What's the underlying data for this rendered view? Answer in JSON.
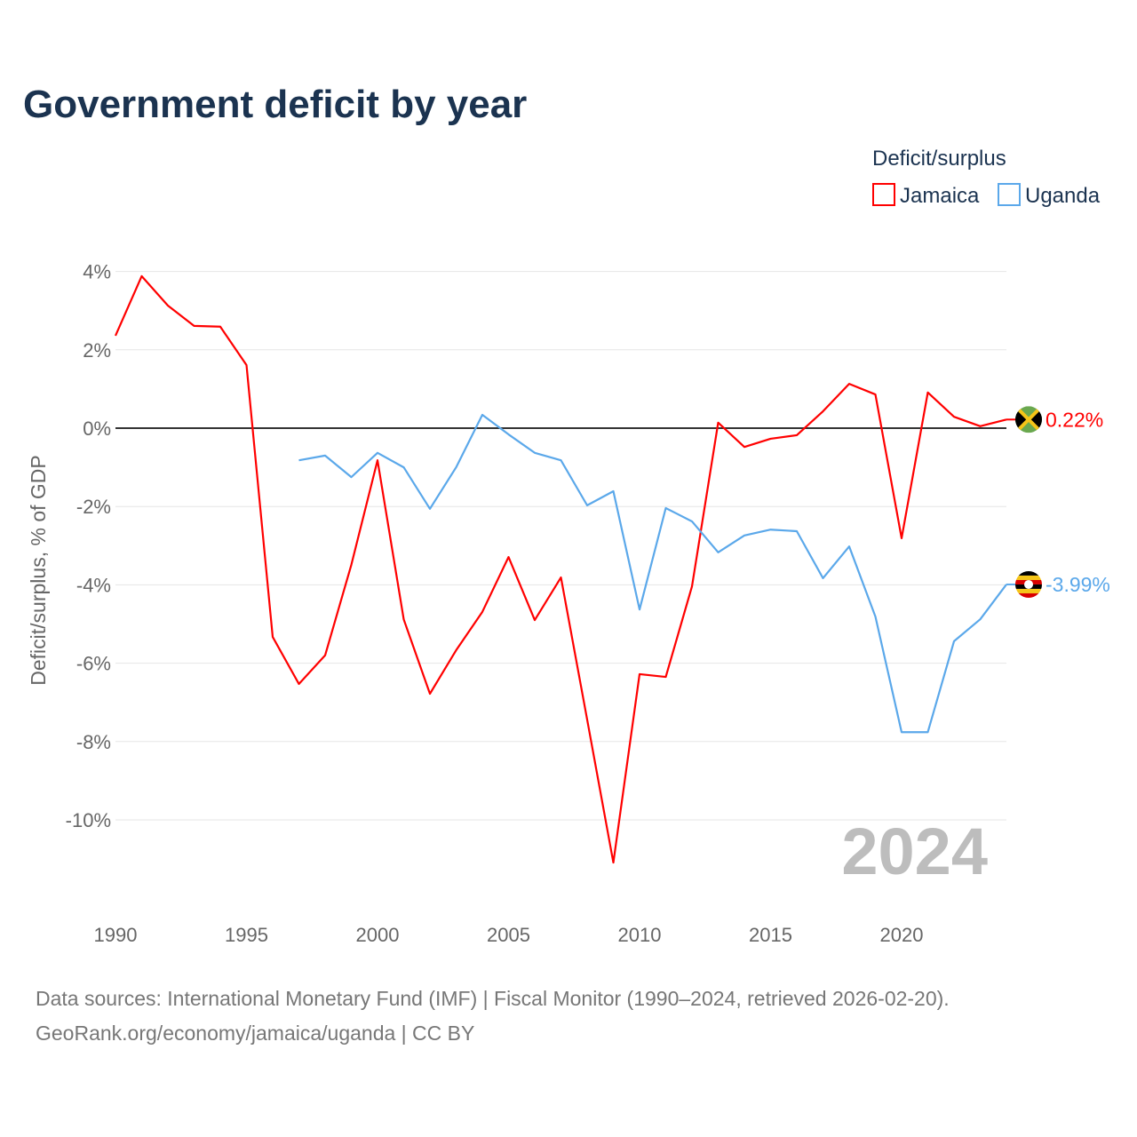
{
  "chart_data": {
    "type": "line",
    "title": "Government deficit by year",
    "xlabel": "",
    "ylabel": "Deficit/surplus, % of GDP",
    "xlim": [
      1990,
      2024
    ],
    "ylim": [
      -12,
      4.5
    ],
    "x_ticks": [
      1990,
      1995,
      2000,
      2005,
      2010,
      2015,
      2020
    ],
    "x_tick_labels": [
      "1990",
      "1995",
      "2000",
      "2005",
      "2010",
      "2015",
      "2020"
    ],
    "y_ticks": [
      4,
      2,
      0,
      -2,
      -4,
      -6,
      -8,
      -10
    ],
    "y_tick_labels": [
      "4%",
      "2%",
      "0%",
      "-2%",
      "-4%",
      "-6%",
      "-8%",
      "-10%"
    ],
    "legend_title": "Deficit/surplus",
    "legend_position": "top-right",
    "year_watermark": "2024",
    "series": [
      {
        "name": "Jamaica",
        "color": "#ff0000",
        "end_label": "0.22%",
        "flag": "jamaica",
        "x": [
          1990,
          1991,
          1992,
          1993,
          1994,
          1995,
          1996,
          1997,
          1998,
          1999,
          2000,
          2001,
          2002,
          2003,
          2004,
          2005,
          2006,
          2007,
          2008,
          2009,
          2010,
          2011,
          2012,
          2013,
          2014,
          2015,
          2016,
          2017,
          2018,
          2019,
          2020,
          2021,
          2022,
          2023,
          2024
        ],
        "values": [
          2.36,
          3.88,
          3.13,
          2.61,
          2.59,
          1.61,
          -5.33,
          -6.53,
          -5.8,
          -3.49,
          -0.82,
          -4.88,
          -6.78,
          -5.67,
          -4.69,
          -3.29,
          -4.9,
          -3.81,
          -7.44,
          -11.09,
          -6.28,
          -6.35,
          -4.04,
          0.14,
          -0.48,
          -0.27,
          -0.18,
          0.43,
          1.13,
          0.86,
          -2.81,
          0.91,
          0.29,
          0.05,
          0.22
        ]
      },
      {
        "name": "Uganda",
        "color": "#5ba8ea",
        "end_label": "-3.99%",
        "flag": "uganda",
        "x": [
          1997,
          1998,
          1999,
          2000,
          2001,
          2002,
          2003,
          2004,
          2005,
          2006,
          2007,
          2008,
          2009,
          2010,
          2011,
          2012,
          2013,
          2014,
          2015,
          2016,
          2017,
          2018,
          2019,
          2020,
          2021,
          2022,
          2023,
          2024
        ],
        "values": [
          -0.82,
          -0.7,
          -1.25,
          -0.63,
          -1.0,
          -2.06,
          -1.0,
          0.34,
          -0.16,
          -0.63,
          -0.82,
          -1.97,
          -1.61,
          -4.63,
          -2.04,
          -2.38,
          -3.17,
          -2.74,
          -2.59,
          -2.63,
          -3.83,
          -3.02,
          -4.81,
          -7.76,
          -7.76,
          -5.44,
          -4.88,
          -3.99
        ]
      }
    ]
  },
  "footer": {
    "line1": "Data sources: International Monetary Fund (IMF) | Fiscal Monitor (1990–2024, retrieved 2026-02-20).",
    "line2": "GeoRank.org/economy/jamaica/uganda | CC BY"
  }
}
